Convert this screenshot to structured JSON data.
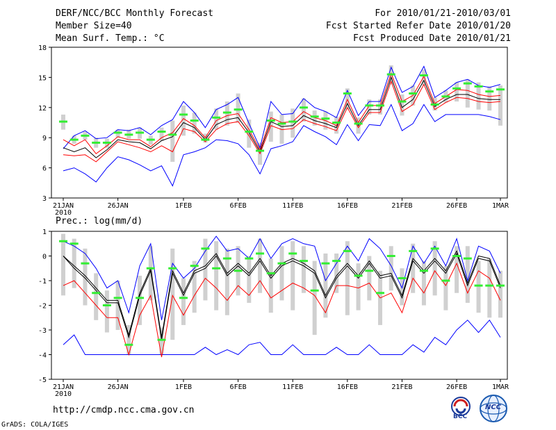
{
  "header": {
    "title": "DERF/NCC/BCC Monthly Forecast",
    "member_size": "Member Size=40",
    "variable": "Mean Surf. Temp.: °C",
    "period": "For 2010/01/21-2010/03/01",
    "started_refer": "Fcst Started Refer Date 2010/01/20",
    "produced": "Fcst Produced Date 2010/01/21"
  },
  "footer": {
    "url": "http://cmdp.ncc.cma.gov.cn",
    "credit": "GrADS: COLA/IGES",
    "logo_left_text": "BCC",
    "logo_right_text": "NCC"
  },
  "colors": {
    "blue": "#0000ff",
    "red": "#ff0000",
    "black": "#000000",
    "green": "#33ee33",
    "bar": "#d0d0d0"
  },
  "chart_data": [
    {
      "type": "line",
      "title": "Mean Surf. Temp.: °C",
      "xlabel": "",
      "ylabel": "",
      "x_ticks": [
        "21JAN",
        "26JAN",
        "1FEB",
        "6FEB",
        "11FEB",
        "16FEB",
        "21FEB",
        "26FEB",
        "1MAR"
      ],
      "x_tick_index": [
        0,
        5,
        11,
        16,
        21,
        26,
        31,
        36,
        40
      ],
      "x_sublabel": "2010",
      "ylim": [
        3,
        18
      ],
      "y_ticks": [
        "3",
        "6",
        "9",
        "12",
        "15",
        "18"
      ],
      "series": [
        {
          "name": "max",
          "color": "blue",
          "values": [
            7.9,
            9.2,
            9.7,
            8.9,
            9.0,
            9.8,
            9.7,
            10.0,
            9.3,
            10.2,
            10.8,
            12.6,
            11.5,
            10.0,
            11.8,
            12.3,
            13.0,
            10.4,
            8.0,
            12.6,
            11.3,
            11.4,
            12.9,
            12.0,
            11.6,
            11.0,
            13.7,
            11.2,
            12.6,
            12.6,
            16.0,
            13.5,
            14.1,
            16.1,
            13.0,
            13.7,
            14.5,
            14.8,
            14.2,
            14.0,
            14.3
          ]
        },
        {
          "name": "upper",
          "color": "red",
          "values": [
            8.8,
            8.2,
            8.8,
            7.4,
            8.2,
            9.1,
            8.8,
            8.8,
            8.1,
            9.0,
            9.5,
            10.9,
            10.2,
            9.0,
            10.7,
            11.2,
            11.4,
            9.8,
            7.8,
            11.0,
            10.5,
            10.6,
            11.6,
            11.0,
            10.7,
            10.2,
            12.8,
            10.5,
            12.2,
            12.2,
            15.4,
            12.6,
            13.2,
            15.1,
            12.4,
            13.1,
            13.8,
            13.7,
            13.3,
            13.1,
            13.2
          ]
        },
        {
          "name": "ensemble mean",
          "color": "black",
          "values": [
            8.0,
            7.6,
            8.0,
            7.0,
            7.8,
            8.8,
            8.6,
            8.5,
            7.9,
            8.7,
            9.1,
            10.5,
            10.0,
            8.8,
            10.3,
            10.8,
            11.0,
            9.5,
            7.6,
            10.6,
            10.1,
            10.2,
            11.2,
            10.7,
            10.4,
            10.0,
            12.4,
            10.2,
            11.8,
            11.8,
            15.0,
            12.0,
            12.8,
            14.7,
            12.1,
            12.8,
            13.3,
            13.3,
            12.9,
            12.8,
            12.8
          ]
        },
        {
          "name": "lower",
          "color": "red",
          "values": [
            7.3,
            7.2,
            7.3,
            6.6,
            7.6,
            8.6,
            8.3,
            8.0,
            7.6,
            8.2,
            7.6,
            9.9,
            9.6,
            8.6,
            9.8,
            10.4,
            10.6,
            9.2,
            7.4,
            10.2,
            9.8,
            9.9,
            10.8,
            10.4,
            10.1,
            9.7,
            12.0,
            10.0,
            11.5,
            11.5,
            14.6,
            11.6,
            12.3,
            14.3,
            11.8,
            12.5,
            13.0,
            12.9,
            12.6,
            12.5,
            12.6
          ]
        },
        {
          "name": "min",
          "color": "blue",
          "values": [
            5.7,
            6.0,
            5.4,
            4.6,
            6.0,
            7.1,
            6.8,
            6.3,
            5.7,
            6.2,
            4.2,
            7.3,
            7.6,
            8.0,
            8.8,
            8.7,
            8.4,
            7.3,
            5.4,
            7.9,
            8.2,
            8.6,
            10.2,
            9.6,
            9.1,
            8.3,
            10.3,
            8.7,
            10.3,
            10.2,
            12.3,
            9.7,
            10.4,
            12.3,
            10.6,
            11.3,
            11.3,
            11.3,
            11.3,
            11.1,
            10.8
          ]
        },
        {
          "name": "observed",
          "color": "green",
          "values": [
            10.6,
            8.8,
            9.2,
            8.5,
            8.5,
            9.5,
            9.3,
            9.5,
            8.8,
            9.6,
            9.3,
            11.3,
            10.7,
            8.8,
            11.0,
            11.5,
            11.8,
            9.6,
            7.7,
            10.7,
            10.4,
            10.6,
            12.0,
            11.1,
            10.9,
            10.5,
            13.4,
            10.4,
            12.2,
            12.2,
            15.3,
            12.6,
            13.4,
            15.2,
            12.3,
            13.1,
            13.9,
            14.4,
            14.1,
            13.6,
            13.8
          ]
        },
        {
          "name": "obs_low",
          "color": "bar",
          "values": [
            9.8,
            8.4,
            8.8,
            8.0,
            8.0,
            9.0,
            8.9,
            8.9,
            8.3,
            8.7,
            6.6,
            9.2,
            9.4,
            8.5,
            9.8,
            10.2,
            10.5,
            8.0,
            6.3,
            8.6,
            8.4,
            9.0,
            10.6,
            10.2,
            9.8,
            9.4,
            11.8,
            9.4,
            11.3,
            11.3,
            14.3,
            11.2,
            12.2,
            14.2,
            11.7,
            12.5,
            12.6,
            12.0,
            11.8,
            11.7,
            10.2
          ]
        },
        {
          "name": "obs_high",
          "color": "bar",
          "values": [
            11.3,
            9.2,
            9.6,
            9.0,
            8.9,
            9.8,
            9.8,
            10.0,
            9.2,
            10.0,
            10.7,
            12.2,
            11.5,
            9.4,
            11.9,
            12.6,
            13.4,
            10.8,
            8.5,
            11.6,
            11.3,
            11.9,
            12.9,
            11.7,
            11.6,
            11.1,
            13.9,
            11.0,
            12.8,
            12.8,
            16.2,
            13.3,
            14.2,
            15.8,
            13.0,
            13.7,
            14.5,
            14.8,
            14.5,
            14.1,
            14.2
          ]
        }
      ]
    },
    {
      "type": "line",
      "title": "Prec.: log(mm/d)",
      "xlabel": "",
      "ylabel": "",
      "x_ticks": [
        "21JAN",
        "26JAN",
        "1FEB",
        "6FEB",
        "11FEB",
        "16FEB",
        "21FEB",
        "26FEB",
        "1MAR"
      ],
      "x_tick_index": [
        0,
        5,
        11,
        16,
        21,
        26,
        31,
        36,
        40
      ],
      "x_sublabel": "2010",
      "ylim": [
        -5,
        1
      ],
      "y_ticks": [
        "-5",
        "-4",
        "-3",
        "-2",
        "-1",
        "0",
        "1"
      ],
      "series": [
        {
          "name": "max",
          "color": "blue",
          "values": [
            0.6,
            0.4,
            0.1,
            -0.5,
            -1.3,
            -1.0,
            -2.3,
            -0.4,
            0.5,
            -2.6,
            -0.3,
            -0.9,
            -0.5,
            0.2,
            0.8,
            0.2,
            0.3,
            -0.1,
            0.7,
            -0.1,
            0.5,
            0.7,
            0.5,
            0.4,
            -1.0,
            -0.3,
            0.4,
            -0.2,
            0.7,
            0.3,
            -0.4,
            -1.3,
            0.4,
            -0.3,
            0.4,
            -0.4,
            0.7,
            -1.0,
            0.4,
            0.2,
            -0.7
          ]
        },
        {
          "name": "upper",
          "color": "black",
          "values": [
            0.0,
            -0.4,
            -0.8,
            -1.3,
            -1.8,
            -1.8,
            -3.2,
            -1.5,
            -0.5,
            -3.3,
            -0.6,
            -1.5,
            -0.6,
            -0.4,
            0.1,
            -0.7,
            -0.3,
            -0.7,
            -0.1,
            -0.8,
            -0.3,
            -0.1,
            -0.3,
            -0.6,
            -1.6,
            -0.8,
            -0.3,
            -0.8,
            -0.2,
            -0.8,
            -0.7,
            -1.6,
            -0.1,
            -0.6,
            -0.1,
            -0.6,
            0.2,
            -1.1,
            0.0,
            -0.1,
            -1.2
          ]
        },
        {
          "name": "ensemble mean",
          "color": "black",
          "values": [
            0.0,
            -0.5,
            -0.9,
            -1.4,
            -1.9,
            -1.9,
            -3.3,
            -1.6,
            -0.6,
            -3.4,
            -0.7,
            -1.6,
            -0.7,
            -0.5,
            0.0,
            -0.8,
            -0.4,
            -0.8,
            -0.2,
            -0.9,
            -0.4,
            -0.2,
            -0.4,
            -0.7,
            -1.7,
            -0.9,
            -0.4,
            -0.9,
            -0.3,
            -0.9,
            -0.8,
            -1.7,
            -0.2,
            -0.7,
            -0.2,
            -0.7,
            0.1,
            -1.2,
            -0.1,
            -0.2,
            -1.3
          ]
        },
        {
          "name": "lower",
          "color": "red",
          "values": [
            -1.2,
            -1.0,
            -1.5,
            -2.0,
            -2.5,
            -2.5,
            -4.0,
            -2.4,
            -1.6,
            -4.1,
            -1.6,
            -2.4,
            -1.6,
            -0.9,
            -1.3,
            -1.8,
            -1.2,
            -1.6,
            -1.0,
            -1.7,
            -1.4,
            -1.1,
            -1.3,
            -1.6,
            -2.3,
            -1.2,
            -1.2,
            -1.3,
            -1.1,
            -1.7,
            -1.5,
            -2.3,
            -0.9,
            -1.5,
            -0.6,
            -1.2,
            -0.3,
            -1.5,
            -0.6,
            -0.9,
            -1.8
          ]
        },
        {
          "name": "min",
          "color": "blue",
          "values": [
            -3.6,
            -3.2,
            -4.0,
            -4.0,
            -4.0,
            -4.0,
            -4.0,
            -4.0,
            -4.0,
            -4.0,
            -4.0,
            -4.0,
            -4.0,
            -3.7,
            -4.0,
            -3.8,
            -4.0,
            -3.6,
            -3.5,
            -4.0,
            -4.0,
            -3.6,
            -4.0,
            -4.0,
            -4.0,
            -3.7,
            -4.0,
            -4.0,
            -3.6,
            -4.0,
            -4.0,
            -4.0,
            -3.6,
            -3.9,
            -3.3,
            -3.6,
            -3.0,
            -2.6,
            -3.1,
            -2.6,
            -3.3
          ]
        },
        {
          "name": "observed",
          "color": "green",
          "values": [
            0.6,
            0.5,
            -0.3,
            -1.5,
            -2.0,
            -1.7,
            -3.6,
            -1.7,
            -0.5,
            -3.4,
            -0.5,
            -1.7,
            -0.4,
            0.3,
            -0.5,
            -0.1,
            -0.6,
            -0.1,
            0.1,
            -0.7,
            -0.3,
            0.1,
            -0.2,
            -1.4,
            -0.3,
            -0.2,
            0.2,
            -0.8,
            -0.6,
            -1.5,
            0.0,
            -0.9,
            0.2,
            -0.6,
            0.3,
            -1.0,
            0.0,
            -0.1,
            -1.2,
            -1.2,
            -1.2
          ]
        },
        {
          "name": "obs_low",
          "color": "bar",
          "values": [
            -1.6,
            -1.3,
            -2.0,
            -2.6,
            -3.1,
            -3.0,
            -4.0,
            -2.8,
            -1.8,
            -4.0,
            -3.4,
            -2.8,
            -2.3,
            -1.8,
            -2.2,
            -2.4,
            -1.6,
            -1.9,
            -1.5,
            -2.3,
            -1.8,
            -2.2,
            -1.5,
            -3.2,
            -2.5,
            -1.5,
            -2.4,
            -2.2,
            -1.8,
            -2.8,
            -1.4,
            -2.0,
            -1.5,
            -2.0,
            -1.6,
            -2.2,
            -1.5,
            -1.9,
            -2.3,
            -2.5,
            -2.5
          ]
        },
        {
          "name": "obs_high",
          "color": "bar",
          "values": [
            0.9,
            0.7,
            0.3,
            -0.7,
            -1.4,
            -1.0,
            -2.8,
            -0.8,
            0.4,
            -2.9,
            0.3,
            -0.9,
            -0.2,
            0.7,
            0.6,
            0.3,
            0.4,
            0.0,
            0.7,
            -0.1,
            0.4,
            0.6,
            0.4,
            -0.2,
            0.1,
            0.1,
            0.6,
            -0.3,
            0.0,
            -0.6,
            0.4,
            -0.5,
            0.5,
            -0.2,
            0.6,
            -0.4,
            0.4,
            0.4,
            -0.2,
            -0.1,
            -0.6
          ]
        }
      ]
    }
  ]
}
